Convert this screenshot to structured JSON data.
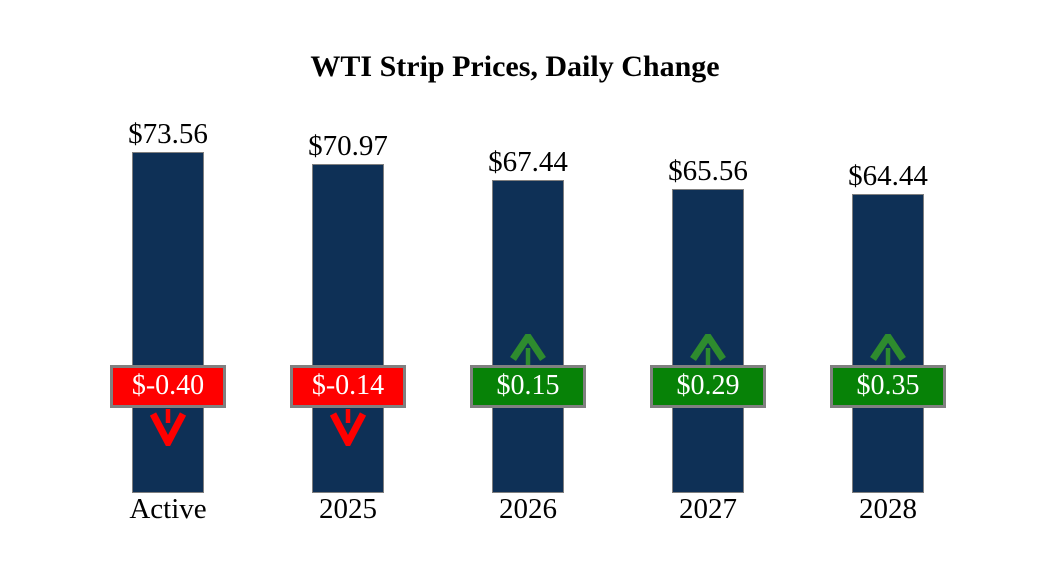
{
  "title": "WTI Strip Prices, Daily Change",
  "chart_data": {
    "type": "bar",
    "title": "WTI Strip Prices, Daily Change",
    "categories": [
      "Active",
      "2025",
      "2026",
      "2027",
      "2028"
    ],
    "series": [
      {
        "name": "strip_price",
        "values": [
          73.56,
          70.97,
          67.44,
          65.56,
          64.44
        ],
        "labels": [
          "$73.56",
          "$70.97",
          "$67.44",
          "$65.56",
          "$64.44"
        ]
      },
      {
        "name": "daily_change",
        "values": [
          -0.4,
          -0.14,
          0.15,
          0.29,
          0.35
        ],
        "labels": [
          "$-0.40",
          "$-0.14",
          "$0.15",
          "$0.29",
          "$0.35"
        ],
        "directions": [
          "down",
          "down",
          "up",
          "up",
          "up"
        ]
      }
    ],
    "ylim": [
      0,
      73.56
    ],
    "grid": false,
    "legend": "none",
    "xlabel": "",
    "ylabel": ""
  },
  "colors": {
    "background": "#FFFFFF",
    "bar": "#0E3056",
    "bar_border": "#7F7F7F",
    "negative_box": "#FF0000",
    "positive_box": "#078207",
    "box_border": "#808080",
    "arrow_down": "#FF0000",
    "arrow_up": "#2E8B2E",
    "title_text": "#000000",
    "change_text": "#FFFFFF"
  },
  "icons": {
    "up": "up-arrow-icon",
    "down": "down-arrow-icon"
  }
}
